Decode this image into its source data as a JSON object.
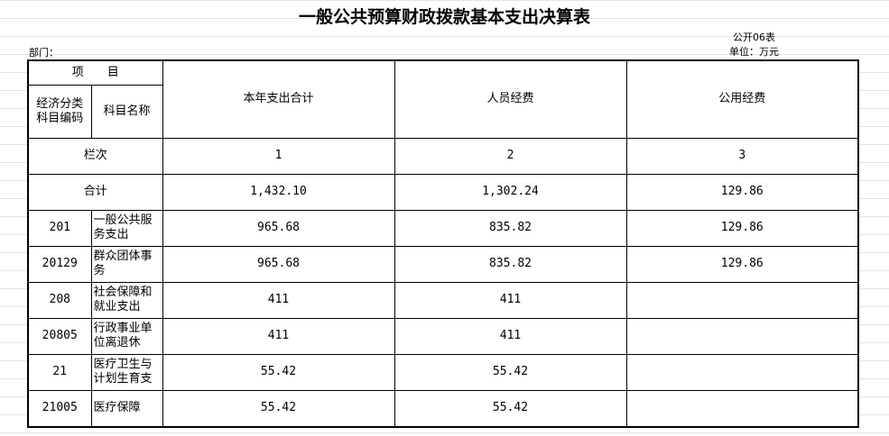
{
  "header": {
    "title": "一般公共预算财政拨款基本支出决算表",
    "form_code": "公开06表",
    "department": "部门：",
    "unit": "单位：万元"
  },
  "table": {
    "item_header": "项　　目",
    "code_header": "经济分类科目编码",
    "name_header": "科目名称",
    "columns": [
      "本年支出合计",
      "人员经费",
      "公用经费"
    ],
    "column_index_label": "栏次",
    "column_indexes": [
      "1",
      "2",
      "3"
    ],
    "total_label": "合计",
    "totals": [
      "1,432.10",
      "1,302.24",
      "129.86"
    ],
    "rows": [
      {
        "code": "201",
        "name": "一般公共服务支出",
        "values": [
          "965.68",
          "835.82",
          "129.86"
        ]
      },
      {
        "code": "20129",
        "name": "群众团体事务",
        "values": [
          "965.68",
          "835.82",
          "129.86"
        ]
      },
      {
        "code": "208",
        "name": "社会保障和就业支出",
        "values": [
          "411",
          "411"
        ]
      },
      {
        "code": "20805",
        "name": "行政事业单位离退休",
        "values": [
          "411",
          "411"
        ]
      },
      {
        "code": "21",
        "name": "医疗卫生与计划生育支",
        "values": [
          "55.42",
          "55.42"
        ]
      },
      {
        "code": "21005",
        "name": "医疗保障",
        "values": [
          "55.42",
          "55.42"
        ]
      }
    ]
  }
}
